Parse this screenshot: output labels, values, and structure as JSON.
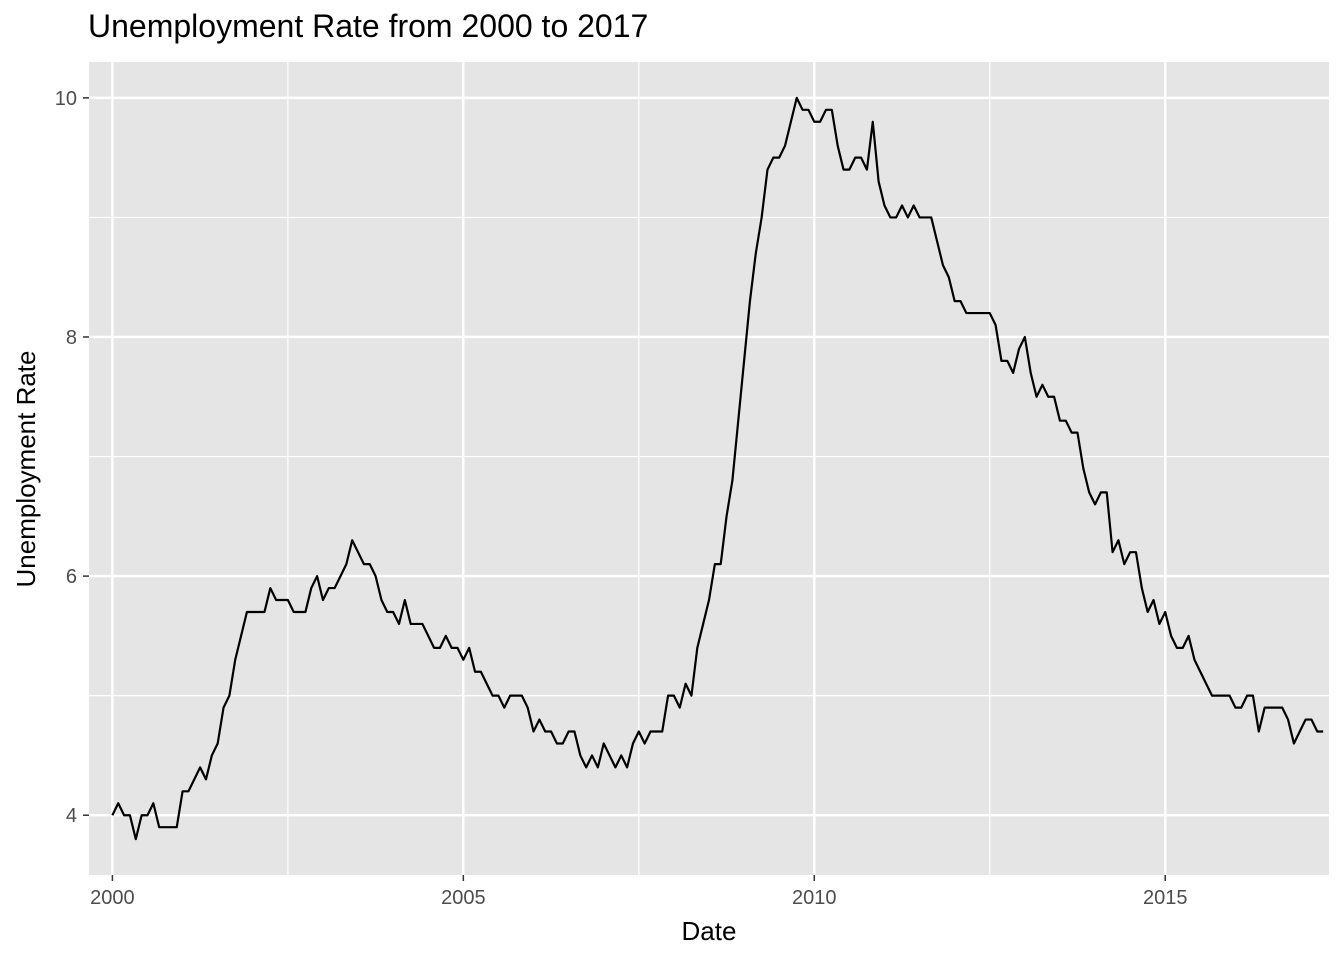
{
  "chart_data": {
    "type": "line",
    "title": "Unemployment Rate from 2000 to 2017",
    "xlabel": "Date",
    "ylabel": "Unemployment Rate",
    "x_ticks": [
      "2000",
      "2005",
      "2010",
      "2015"
    ],
    "y_ticks": [
      "4",
      "6",
      "8",
      "10"
    ],
    "xlim": [
      "1999-09-01",
      "2017-05-01"
    ],
    "ylim": [
      3.5,
      10.3
    ],
    "grid": true,
    "background": "#e5e5e5",
    "line_color": "#000000",
    "x_unit": "month",
    "series": [
      {
        "start": "2000-01",
        "values": [
          4.0,
          4.1,
          4.0,
          4.0,
          3.8,
          4.0,
          4.0,
          4.1,
          3.9,
          3.9,
          3.9,
          3.9,
          4.2,
          4.2,
          4.3,
          4.4,
          4.3,
          4.5,
          4.6,
          4.9,
          5.0,
          5.3,
          5.5,
          5.7,
          5.7,
          5.7,
          5.7,
          5.9,
          5.8,
          5.8,
          5.8,
          5.7,
          5.7,
          5.7,
          5.9,
          6.0,
          5.8,
          5.9,
          5.9,
          6.0,
          6.1,
          6.3,
          6.2,
          6.1,
          6.1,
          6.0,
          5.8,
          5.7,
          5.7,
          5.6,
          5.8,
          5.6,
          5.6,
          5.6,
          5.5,
          5.4,
          5.4,
          5.5,
          5.4,
          5.4,
          5.3,
          5.4,
          5.2,
          5.2,
          5.1,
          5.0,
          5.0,
          4.9,
          5.0,
          5.0,
          5.0,
          4.9,
          4.7,
          4.8,
          4.7,
          4.7,
          4.6,
          4.6,
          4.7,
          4.7,
          4.5,
          4.4,
          4.5,
          4.4,
          4.6,
          4.5,
          4.4,
          4.5,
          4.4,
          4.6,
          4.7,
          4.6,
          4.7,
          4.7,
          4.7,
          5.0,
          5.0,
          4.9,
          5.1,
          5.0,
          5.4,
          5.6,
          5.8,
          6.1,
          6.1,
          6.5,
          6.8,
          7.3,
          7.8,
          8.3,
          8.7,
          9.0,
          9.4,
          9.5,
          9.5,
          9.6,
          9.8,
          10.0,
          9.9,
          9.9,
          9.8,
          9.8,
          9.9,
          9.9,
          9.6,
          9.4,
          9.4,
          9.5,
          9.5,
          9.4,
          9.8,
          9.3,
          9.1,
          9.0,
          9.0,
          9.1,
          9.0,
          9.1,
          9.0,
          9.0,
          9.0,
          8.8,
          8.6,
          8.5,
          8.3,
          8.3,
          8.2,
          8.2,
          8.2,
          8.2,
          8.2,
          8.1,
          7.8,
          7.8,
          7.7,
          7.9,
          8.0,
          7.7,
          7.5,
          7.6,
          7.5,
          7.5,
          7.3,
          7.3,
          7.2,
          7.2,
          6.9,
          6.7,
          6.6,
          6.7,
          6.7,
          6.2,
          6.3,
          6.1,
          6.2,
          6.2,
          5.9,
          5.7,
          5.8,
          5.6,
          5.7,
          5.5,
          5.4,
          5.4,
          5.5,
          5.3,
          5.2,
          5.1,
          5.0,
          5.0,
          5.0,
          5.0,
          4.9,
          4.9,
          5.0,
          5.0,
          4.7,
          4.9,
          4.9,
          4.9,
          4.9,
          4.8,
          4.6,
          4.7,
          4.8,
          4.8,
          4.7,
          4.7
        ]
      }
    ]
  }
}
